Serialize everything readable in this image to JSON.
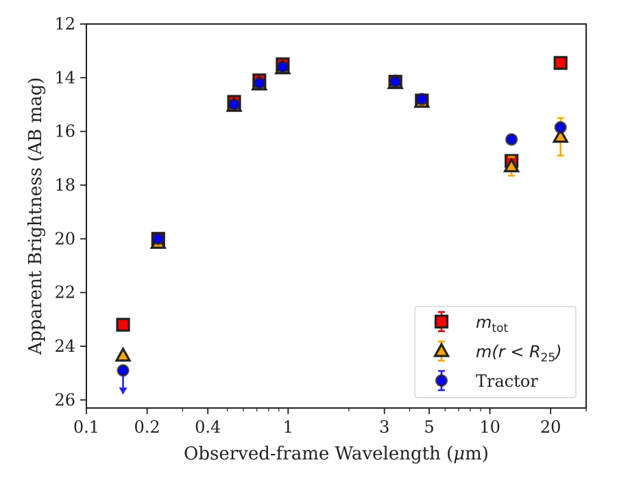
{
  "chart_data": {
    "type": "scatter",
    "xlabel_main": "Observed-frame Wavelength (",
    "xlabel_mu": "μ",
    "xlabel_tail": "m)",
    "ylabel": "Apparent Brightness (AB mag)",
    "x_scale": "log",
    "y_inverted": true,
    "xlim": [
      0.1,
      30
    ],
    "ylim": [
      12,
      26.3
    ],
    "x_ticks": [
      0.1,
      0.2,
      0.4,
      1,
      3,
      5,
      10,
      20
    ],
    "x_tick_labels": [
      "0.1",
      "0.2",
      "0.4",
      "1",
      "3",
      "5",
      "10",
      "20"
    ],
    "y_ticks": [
      12,
      14,
      16,
      18,
      20,
      22,
      24,
      26
    ],
    "y_tick_labels": [
      "12",
      "14",
      "16",
      "18",
      "20",
      "22",
      "24",
      "26"
    ],
    "legend_position": "lower-right",
    "series": [
      {
        "key": "mtot",
        "legend_main": "m",
        "legend_sub": "tot",
        "marker": "square",
        "color": "#ff0000",
        "errcolor": "#dd0000",
        "points": [
          {
            "x": 0.152,
            "y": 23.2,
            "err": 0.08
          },
          {
            "x": 0.227,
            "y": 20.0,
            "err": 0.05
          },
          {
            "x": 0.54,
            "y": 14.9,
            "err": 0.08
          },
          {
            "x": 0.72,
            "y": 14.1,
            "err": 0.08
          },
          {
            "x": 0.94,
            "y": 13.5,
            "err": 0.08
          },
          {
            "x": 3.4,
            "y": 14.15,
            "err": 0.05
          },
          {
            "x": 4.6,
            "y": 14.85,
            "err": 0.05
          },
          {
            "x": 12.8,
            "y": 17.1,
            "err": 0.08
          },
          {
            "x": 22.4,
            "y": 13.45,
            "err": 0.05
          }
        ]
      },
      {
        "key": "mr25",
        "legend_main": "m(r < R",
        "legend_sub": "25",
        "legend_close": ")",
        "marker": "triangle",
        "color": "#ffa500",
        "errcolor": "#ffa500",
        "points": [
          {
            "x": 0.152,
            "y": 24.35,
            "err": 0.1
          },
          {
            "x": 0.227,
            "y": 20.15,
            "err": 0.05
          },
          {
            "x": 0.54,
            "y": 15.05,
            "err": 0.05
          },
          {
            "x": 0.72,
            "y": 14.25,
            "err": 0.05
          },
          {
            "x": 0.94,
            "y": 13.65,
            "err": 0.05
          },
          {
            "x": 3.4,
            "y": 14.2,
            "err": 0.05
          },
          {
            "x": 4.6,
            "y": 14.9,
            "err": 0.05
          },
          {
            "x": 12.8,
            "y": 17.3,
            "err": 0.35
          },
          {
            "x": 22.4,
            "y": 16.2,
            "err": 0.7
          }
        ]
      },
      {
        "key": "tractor",
        "legend_main": "Tractor",
        "marker": "circle",
        "color": "#0000ff",
        "errcolor": "#2222ff",
        "points": [
          {
            "x": 0.152,
            "y": 24.9,
            "err": 0.0,
            "upper_limit": true
          },
          {
            "x": 0.227,
            "y": 20.0,
            "err": 0.05
          },
          {
            "x": 0.54,
            "y": 15.0,
            "err": 0.05
          },
          {
            "x": 0.72,
            "y": 14.2,
            "err": 0.05
          },
          {
            "x": 0.94,
            "y": 13.6,
            "err": 0.05
          },
          {
            "x": 3.4,
            "y": 14.15,
            "err": 0.05
          },
          {
            "x": 4.6,
            "y": 14.8,
            "err": 0.05
          },
          {
            "x": 12.8,
            "y": 16.3,
            "err": 0.05
          },
          {
            "x": 22.4,
            "y": 15.85,
            "err": 0.05
          }
        ]
      }
    ]
  }
}
